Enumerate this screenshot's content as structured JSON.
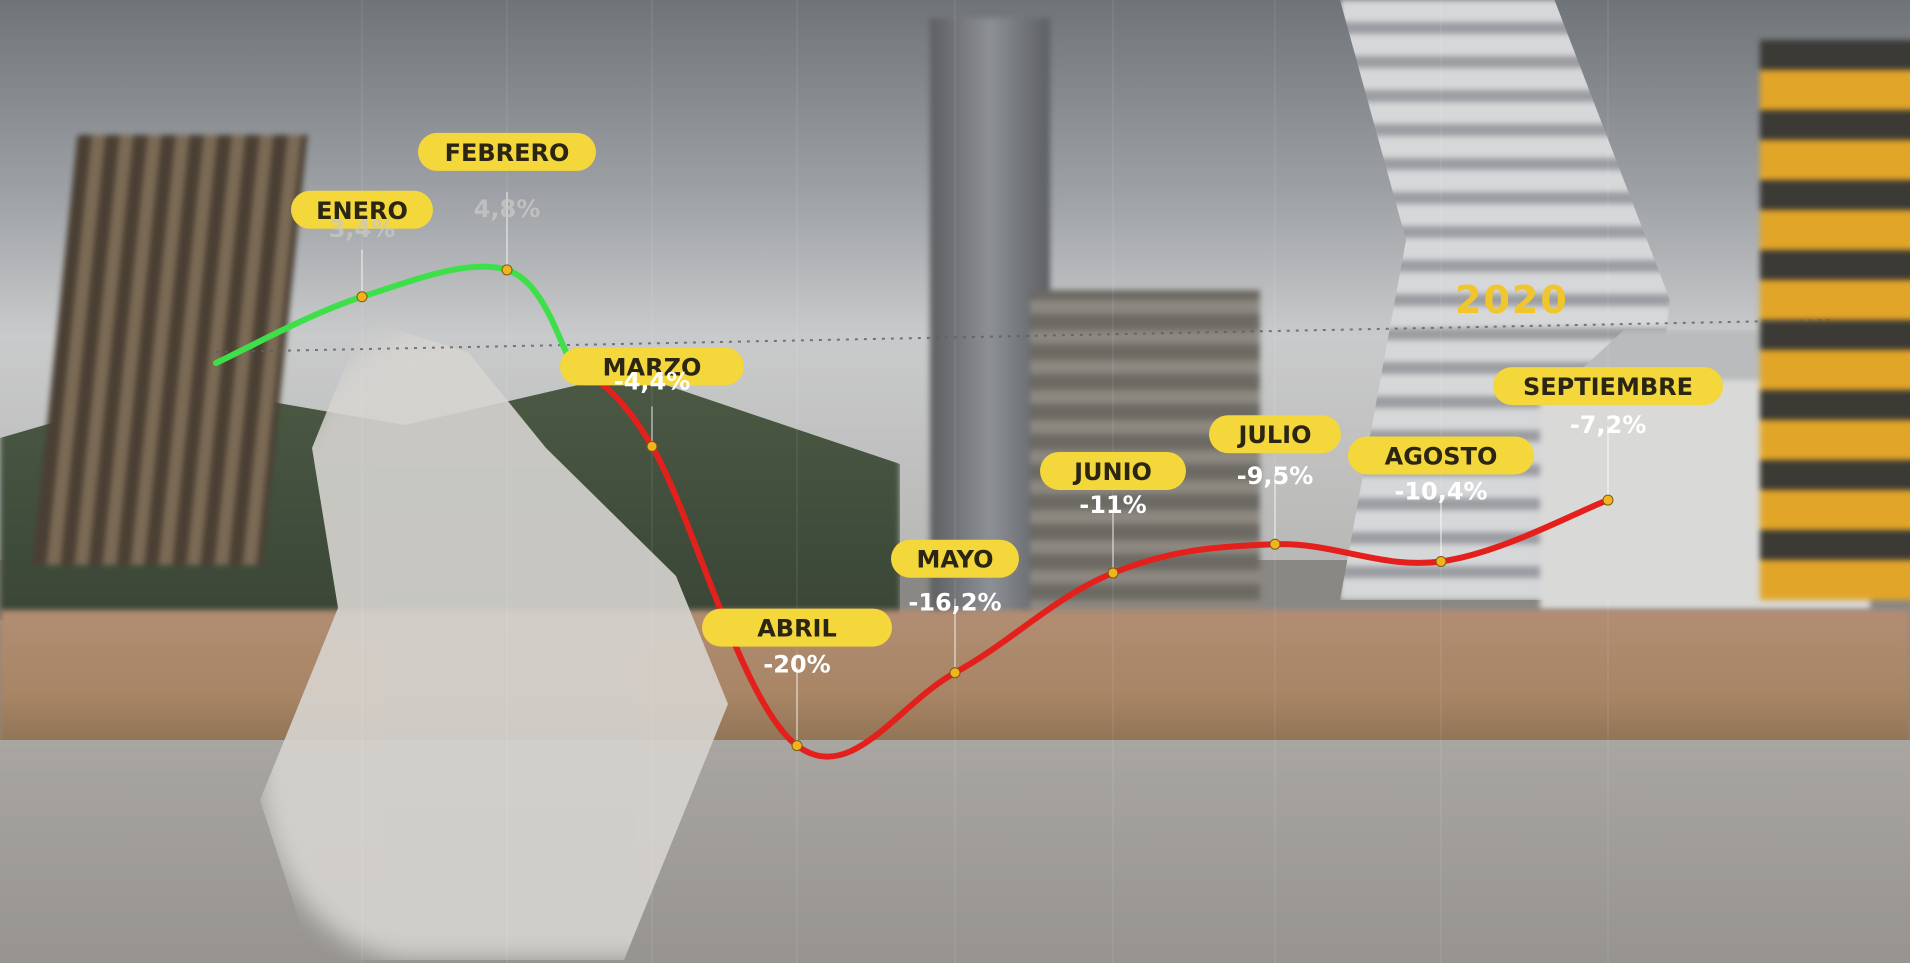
{
  "year_label": "2020",
  "chart_data": {
    "type": "line",
    "title": "",
    "xlabel": "",
    "ylabel": "",
    "categories": [
      "ENERO",
      "FEBRERO",
      "MARZO",
      "ABRIL",
      "MAYO",
      "JUNIO",
      "JULIO",
      "AGOSTO",
      "SEPTIEMBRE"
    ],
    "series": [
      {
        "values": [
          3.4,
          4.8,
          -4.4,
          -20,
          -16.2,
          -11,
          -9.5,
          -10.4,
          -7.2
        ],
        "value_labels": [
          "3,4%",
          "4,8%",
          "-4,4%",
          "-20%",
          "-16,2%",
          "-11%",
          "-9,5%",
          "-10,4%",
          "-7,2%"
        ]
      }
    ],
    "ylim": [
      -21,
      6
    ],
    "baseline": 0,
    "grid": false,
    "legend": "none",
    "colors": {
      "positive": "#3ee04a",
      "negative": "#e3201b",
      "label_background": "#f3d73b",
      "label_text": "#2b2514",
      "year": "#f0c62c"
    }
  }
}
